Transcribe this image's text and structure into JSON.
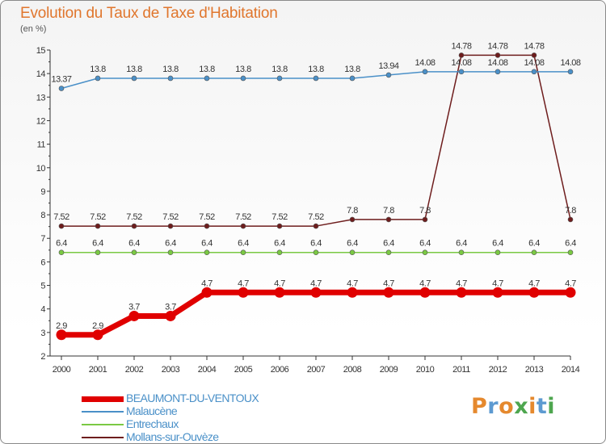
{
  "title": "Evolution du Taux de Taxe d'Habitation",
  "subtitle": "(en %)",
  "brand": {
    "letters": [
      "P",
      "r",
      "o",
      "x",
      "i",
      "t",
      "i"
    ],
    "colors": [
      "#e5892e",
      "#5d9ad1",
      "#e5892e",
      "#4ea64f",
      "#e5892e",
      "#5d9ad1",
      "#4ea64f"
    ]
  },
  "chart_data": {
    "type": "line",
    "x": [
      "2000",
      "2001",
      "2002",
      "2003",
      "2004",
      "2005",
      "2006",
      "2007",
      "2008",
      "2009",
      "2010",
      "2011",
      "2012",
      "2013",
      "2014"
    ],
    "ylim": [
      2,
      15
    ],
    "yticks": [
      "2",
      "3",
      "4",
      "5",
      "6",
      "7",
      "8",
      "9",
      "10",
      "11",
      "12",
      "13",
      "14",
      "15"
    ],
    "grid": false,
    "legend_position": "bottom-left",
    "series": [
      {
        "name": "BEAUMONT-DU-VENTOUX",
        "color": "#e00000",
        "emphasis": true,
        "values": [
          2.9,
          2.9,
          3.7,
          3.7,
          4.7,
          4.7,
          4.7,
          4.7,
          4.7,
          4.7,
          4.7,
          4.7,
          4.7,
          4.7,
          4.7
        ],
        "labels": [
          "2.9",
          "2.9",
          "3.7",
          "3.7",
          "4.7",
          "4.7",
          "4.7",
          "4.7",
          "4.7",
          "4.7",
          "4.7",
          "4.7",
          "4.7",
          "4.7",
          "4.7"
        ]
      },
      {
        "name": "Malaucène",
        "color": "#4a90c8",
        "values": [
          13.37,
          13.8,
          13.8,
          13.8,
          13.8,
          13.8,
          13.8,
          13.8,
          13.8,
          13.94,
          14.08,
          14.08,
          14.08,
          14.08,
          14.08
        ],
        "labels": [
          "13.37",
          "13.8",
          "13.8",
          "13.8",
          "13.8",
          "13.8",
          "13.8",
          "13.8",
          "13.8",
          "13.94",
          "14.08",
          "14.08",
          "14.08",
          "14.08",
          "14.08"
        ]
      },
      {
        "name": "Entrechaux",
        "color": "#7ac943",
        "values": [
          6.4,
          6.4,
          6.4,
          6.4,
          6.4,
          6.4,
          6.4,
          6.4,
          6.4,
          6.4,
          6.4,
          6.4,
          6.4,
          6.4,
          6.4
        ],
        "labels": [
          "6.4",
          "6.4",
          "6.4",
          "6.4",
          "6.4",
          "6.4",
          "6.4",
          "6.4",
          "6.4",
          "6.4",
          "6.4",
          "6.4",
          "6.4",
          "6.4",
          "6.4"
        ]
      },
      {
        "name": "Mollans-sur-Ouvèze",
        "color": "#6e1d1d",
        "values": [
          7.52,
          7.52,
          7.52,
          7.52,
          7.52,
          7.52,
          7.52,
          7.52,
          7.8,
          7.8,
          7.8,
          14.78,
          14.78,
          14.78,
          7.8
        ],
        "labels": [
          "7.52",
          "7.52",
          "7.52",
          "7.52",
          "7.52",
          "7.52",
          "7.52",
          "7.52",
          "7.8",
          "7.8",
          "7.8",
          "14.78",
          "14.78",
          "14.78",
          "7.8"
        ]
      }
    ]
  }
}
